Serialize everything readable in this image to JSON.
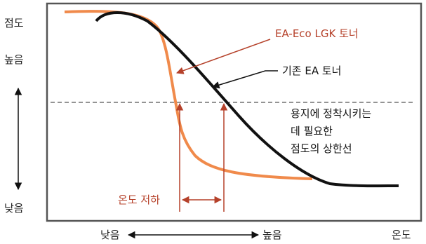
{
  "y_axis": {
    "title": "점도",
    "high_label": "높음",
    "low_label": "낮음"
  },
  "x_axis": {
    "title": "온도",
    "low_label": "낮음",
    "high_label": "높음"
  },
  "curves": {
    "new_toner": {
      "label": "EA-Eco LGK 토너",
      "color": "#f08a4b"
    },
    "old_toner": {
      "label": "기존 EA 토너",
      "color": "#111111"
    }
  },
  "threshold": {
    "lines": [
      "용지에 정착시키는",
      "데 필요한",
      "점도의 상한선"
    ]
  },
  "temperature_drop": {
    "label": "온도 저하",
    "color": "#b5412a"
  },
  "colors": {
    "frame": "#555555",
    "threshold_line": "#555555"
  }
}
